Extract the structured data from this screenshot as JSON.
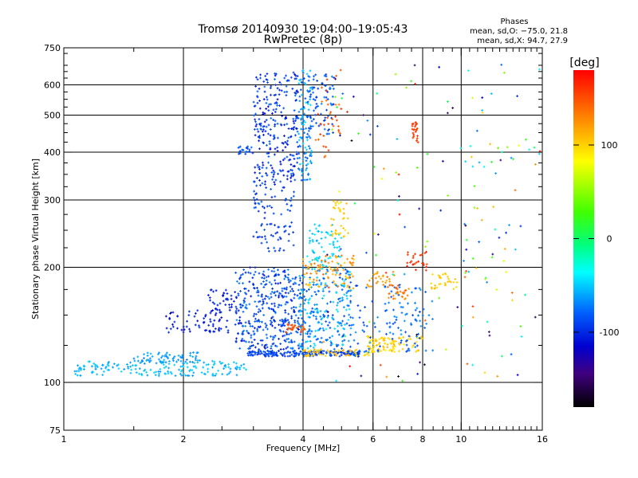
{
  "chart_data": {
    "type": "scatter",
    "title": "Tromsø 20140930 19:04:00–19:05:43",
    "subtitle": "RwPretec (8p)",
    "stats_header": "Phases",
    "stats_line1": "mean, sd,O: −75.0, 21.8",
    "stats_line2": "mean, sd,X:  94.7, 27.9",
    "xlabel": "Frequency [MHz]",
    "ylabel": "Stationary phase Virtual Height [km]",
    "x_scale": "log",
    "y_scale": "log",
    "xlim": [
      1,
      16
    ],
    "ylim": [
      75,
      750
    ],
    "x_ticks": [
      1,
      2,
      4,
      6,
      8,
      10,
      16
    ],
    "y_ticks": [
      75,
      100,
      200,
      300,
      400,
      500,
      600,
      750
    ],
    "x_grid": [
      2,
      4,
      6,
      8,
      10
    ],
    "y_grid": [
      100,
      200,
      300,
      400,
      500,
      600
    ],
    "grid": true,
    "colorbar": {
      "label": "[deg]",
      "range": [
        -180,
        180
      ],
      "ticks": [
        100,
        0,
        -100
      ],
      "colors": [
        "#ff0000",
        "#ff8000",
        "#ffff00",
        "#00ff00",
        "#00ffff",
        "#0040ff",
        "#0000c0",
        "#400060",
        "#000000"
      ]
    },
    "clusters": [
      {
        "x": [
          1.05,
          2.9
        ],
        "y": [
          104,
          114
        ],
        "n": 170,
        "phase": [
          -65,
          -45
        ]
      },
      {
        "x": [
          1.5,
          2.2
        ],
        "y": [
          112,
          120
        ],
        "n": 70,
        "phase": [
          -70,
          -55
        ]
      },
      {
        "x": [
          2.9,
          5.6
        ],
        "y": [
          117,
          121
        ],
        "n": 210,
        "phase": [
          -100,
          -80
        ]
      },
      {
        "x": [
          4.0,
          6.0
        ],
        "y": [
          117,
          122
        ],
        "n": 60,
        "phase": [
          90,
          120
        ]
      },
      {
        "x": [
          5.8,
          8.0
        ],
        "y": [
          120,
          132
        ],
        "n": 100,
        "phase": [
          85,
          115
        ]
      },
      {
        "x": [
          1.8,
          2.6
        ],
        "y": [
          135,
          155
        ],
        "n": 70,
        "phase": [
          -115,
          -95
        ]
      },
      {
        "x": [
          2.3,
          2.8
        ],
        "y": [
          150,
          175
        ],
        "n": 40,
        "phase": [
          -110,
          -95
        ]
      },
      {
        "x": [
          2.7,
          4.0
        ],
        "y": [
          122,
          200
        ],
        "n": 380,
        "phase": [
          -110,
          -70
        ]
      },
      {
        "x": [
          3.9,
          5.3
        ],
        "y": [
          122,
          200
        ],
        "n": 260,
        "phase": [
          -90,
          -40
        ]
      },
      {
        "x": [
          3.6,
          4.1
        ],
        "y": [
          135,
          142
        ],
        "n": 30,
        "phase": [
          140,
          160
        ]
      },
      {
        "x": [
          4.0,
          5.4
        ],
        "y": [
          175,
          215
        ],
        "n": 90,
        "phase": [
          100,
          140
        ]
      },
      {
        "x": [
          4.1,
          5.0
        ],
        "y": [
          200,
          260
        ],
        "n": 70,
        "phase": [
          -60,
          -35
        ]
      },
      {
        "x": [
          4.7,
          5.2
        ],
        "y": [
          240,
          300
        ],
        "n": 35,
        "phase": [
          95,
          110
        ]
      },
      {
        "x": [
          5.2,
          8.5
        ],
        "y": [
          120,
          180
        ],
        "n": 120,
        "phase": [
          -95,
          -60
        ]
      },
      {
        "x": [
          6.5,
          7.4
        ],
        "y": [
          165,
          180
        ],
        "n": 30,
        "phase": [
          120,
          150
        ]
      },
      {
        "x": [
          5.8,
          6.8
        ],
        "y": [
          178,
          195
        ],
        "n": 25,
        "phase": [
          110,
          130
        ]
      },
      {
        "x": [
          7.3,
          8.3
        ],
        "y": [
          195,
          220
        ],
        "n": 25,
        "phase": [
          150,
          175
        ]
      },
      {
        "x": [
          8.3,
          9.8
        ],
        "y": [
          175,
          195
        ],
        "n": 30,
        "phase": [
          95,
          110
        ]
      },
      {
        "x": [
          3.0,
          3.8
        ],
        "y": [
          220,
          330
        ],
        "n": 90,
        "phase": [
          -105,
          -80
        ]
      },
      {
        "x": [
          3.0,
          3.9
        ],
        "y": [
          330,
          650
        ],
        "n": 260,
        "phase": [
          -115,
          -75
        ]
      },
      {
        "x": [
          2.75,
          3.0
        ],
        "y": [
          395,
          415
        ],
        "n": 25,
        "phase": [
          -95,
          -75
        ]
      },
      {
        "x": [
          3.9,
          4.2
        ],
        "y": [
          330,
          660
        ],
        "n": 110,
        "phase": [
          -90,
          -40
        ]
      },
      {
        "x": [
          4.1,
          4.8
        ],
        "y": [
          430,
          640
        ],
        "n": 80,
        "phase": [
          -100,
          -70
        ]
      },
      {
        "x": [
          4.3,
          5.0
        ],
        "y": [
          380,
          660
        ],
        "n": 35,
        "phase": [
          130,
          170
        ]
      },
      {
        "x": [
          7.5,
          7.8
        ],
        "y": [
          420,
          480
        ],
        "n": 25,
        "phase": [
          150,
          170
        ]
      },
      {
        "x": [
          4.4,
          16
        ],
        "y": [
          95,
          700
        ],
        "n": 130,
        "phase": [
          -180,
          180
        ]
      },
      {
        "x": [
          10,
          13.5
        ],
        "y": [
          100,
          680
        ],
        "n": 40,
        "phase": [
          -120,
          150
        ]
      }
    ]
  }
}
